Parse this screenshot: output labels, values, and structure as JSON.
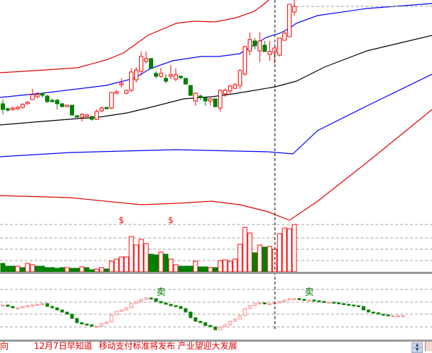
{
  "colors": {
    "up": "#ff0000",
    "down": "#008000",
    "indicator_up": "#ff8080",
    "upper_band": "#e00000",
    "mid_band": "#0000ff",
    "ma": "#000000",
    "lower_band_blue": "#0000ff",
    "lower_band_red": "#e00000",
    "grid": "#a0a0a0"
  },
  "chart_data": [
    {
      "type": "candlestick",
      "title": "",
      "grid": false,
      "candles": [
        [
          5.3,
          4.5,
          5.9,
          3.8
        ],
        [
          4.6,
          4.4,
          4.8,
          4.2
        ],
        [
          4.5,
          4.7,
          4.9,
          4.3
        ],
        [
          4.6,
          4.8,
          5.0,
          4.4
        ],
        [
          4.8,
          5.2,
          5.4,
          4.6
        ],
        [
          5.3,
          5.5,
          5.7,
          5.3
        ],
        [
          5.9,
          6.6,
          7.4,
          5.9
        ],
        [
          6.3,
          6.6,
          7.0,
          6.1
        ],
        [
          6.8,
          6.5,
          6.9,
          6.2
        ],
        [
          6.4,
          5.6,
          6.6,
          5.4
        ],
        [
          5.8,
          5.6,
          6.0,
          5.5
        ],
        [
          5.8,
          5.3,
          6.0,
          4.5
        ],
        [
          5.3,
          4.9,
          5.4,
          4.8
        ],
        [
          4.9,
          5.1,
          5.1,
          4.9
        ],
        [
          5.1,
          3.7,
          5.1,
          3.7
        ],
        [
          3.6,
          3.4,
          3.7,
          3.4
        ],
        [
          3.4,
          3.8,
          4.0,
          2.8
        ],
        [
          3.5,
          3.7,
          3.9,
          3.4
        ],
        [
          3.5,
          3.1,
          3.6,
          2.9
        ],
        [
          3.1,
          4.2,
          4.5,
          3.0
        ],
        [
          4.3,
          4.7,
          4.9,
          4.1
        ],
        [
          4.8,
          4.6,
          4.8,
          4.5
        ],
        [
          4.7,
          6.9,
          7.0,
          4.5
        ],
        [
          6.8,
          7.0,
          7.3,
          6.6
        ],
        [
          8.0,
          8.2,
          8.9,
          7.6
        ],
        [
          6.8,
          7.2,
          7.3,
          6.6
        ],
        [
          7.2,
          9.8,
          10.3,
          7.0
        ],
        [
          8.7,
          10.1,
          10.5,
          8.3
        ],
        [
          9.9,
          12.0,
          12.7,
          9.3
        ],
        [
          11.3,
          11.7,
          12.7,
          11.0
        ],
        [
          11.7,
          10.3,
          11.8,
          10.2
        ],
        [
          9.6,
          9.2,
          9.9,
          8.9
        ],
        [
          9.2,
          9.6,
          10.4,
          9.0
        ],
        [
          8.9,
          8.5,
          9.5,
          8.2
        ],
        [
          9.2,
          9.4,
          10.8,
          8.8
        ],
        [
          8.8,
          9.4,
          10.3,
          8.5
        ],
        [
          9.2,
          9.0,
          9.3,
          8.8
        ],
        [
          8.9,
          8.1,
          8.9,
          8.0
        ],
        [
          7.9,
          6.5,
          7.9,
          6.4
        ],
        [
          5.7,
          6.8,
          6.9,
          5.0
        ],
        [
          6.4,
          6.2,
          6.6,
          5.8
        ],
        [
          6.1,
          5.7,
          6.2,
          5.0
        ],
        [
          5.7,
          6.0,
          6.1,
          5.1
        ],
        [
          6.0,
          4.9,
          6.0,
          4.8
        ],
        [
          4.7,
          7.2,
          7.4,
          4.2
        ],
        [
          6.7,
          7.2,
          7.5,
          6.3
        ],
        [
          7.1,
          7.8,
          8.0,
          6.6
        ],
        [
          7.5,
          8.0,
          8.3,
          7.4
        ],
        [
          7.9,
          10.0,
          10.2,
          7.4
        ],
        [
          9.5,
          13.4,
          13.5,
          9.3
        ],
        [
          12.8,
          14.4,
          15.4,
          12.2
        ],
        [
          14.2,
          13.5,
          14.6,
          13.0
        ],
        [
          12.8,
          14.2,
          15.4,
          11.2
        ],
        [
          13.6,
          12.7,
          14.2,
          12.7
        ],
        [
          12.3,
          12.7,
          14.2,
          11.4
        ],
        [
          12.5,
          13.2,
          13.3,
          11.0
        ],
        [
          12.2,
          14.6,
          14.6,
          12.0
        ],
        [
          14.3,
          15.3,
          15.7,
          14.4
        ],
        [
          14.8,
          19.4,
          19.4,
          14.8
        ],
        [
          18.3,
          19.1,
          20.0,
          17.8
        ]
      ],
      "lines": [
        {
          "role": "upper-band-red",
          "points": [
            [
              -0.6,
              9.7
            ],
            [
              6.6,
              10
            ],
            [
              15.1,
              10.4
            ],
            [
              20.9,
              11.5
            ],
            [
              24.4,
              12.5
            ],
            [
              27,
              13.8
            ],
            [
              29.4,
              15
            ],
            [
              35.1,
              16.7
            ],
            [
              38.7,
              17
            ],
            [
              43,
              16.9
            ],
            [
              47.3,
              17.5
            ],
            [
              50.9,
              18.4
            ],
            [
              53,
              19.5
            ],
            [
              54.1,
              20.2
            ]
          ]
        },
        {
          "role": "mid-band-blue",
          "points": [
            [
              -0.6,
              6.2
            ],
            [
              8,
              6.8
            ],
            [
              20.9,
              7.9
            ],
            [
              26.6,
              8.9
            ],
            [
              29.9,
              10.3
            ],
            [
              34.4,
              11.4
            ],
            [
              40.1,
              12
            ],
            [
              43.7,
              12
            ],
            [
              48,
              12.4
            ],
            [
              53.3,
              14.7
            ],
            [
              56.1,
              15.3
            ],
            [
              58,
              16
            ],
            [
              59.4,
              16.7
            ],
            [
              63.7,
              17.8
            ],
            [
              73.7,
              18.8
            ],
            [
              86.9,
              19.5
            ]
          ]
        },
        {
          "role": "moving-average-black",
          "points": [
            [
              -0.6,
              2.3
            ],
            [
              8,
              2.8
            ],
            [
              15.1,
              3.2
            ],
            [
              19.4,
              3.4
            ],
            [
              25.1,
              4
            ],
            [
              29.9,
              4.8
            ],
            [
              36.6,
              6
            ],
            [
              42.3,
              6.3
            ],
            [
              46.6,
              6.7
            ],
            [
              50.9,
              7.2
            ],
            [
              55.1,
              7.7
            ],
            [
              59.4,
              8.5
            ],
            [
              65.1,
              10.5
            ],
            [
              73.7,
              12.8
            ],
            [
              86.9,
              15
            ]
          ]
        },
        {
          "role": "lower-band-blue",
          "points": [
            [
              -0.6,
              -2.2
            ],
            [
              13.7,
              -1.6
            ],
            [
              35.1,
              -1.2
            ],
            [
              53.7,
              -1.5
            ],
            [
              58.7,
              -1.8
            ],
            [
              63.7,
              1.5
            ],
            [
              73.7,
              5
            ],
            [
              86.9,
              9.5
            ]
          ]
        },
        {
          "role": "lower-band-red",
          "points": [
            [
              -0.6,
              -7.7
            ],
            [
              13.7,
              -8
            ],
            [
              28,
              -9
            ],
            [
              35.1,
              -8.8
            ],
            [
              42.3,
              -8.5
            ],
            [
              48,
              -9
            ],
            [
              53.7,
              -10
            ],
            [
              58,
              -11.2
            ],
            [
              63.7,
              -8.5
            ],
            [
              73.7,
              -3
            ],
            [
              86.9,
              4.5
            ]
          ]
        }
      ],
      "cursor_index": 55
    },
    {
      "type": "bar",
      "title": "",
      "values": [
        12,
        8,
        8,
        8,
        6,
        12,
        10,
        8,
        8,
        6,
        6,
        5,
        6,
        6,
        5,
        5,
        7,
        6,
        3,
        4,
        6,
        4,
        15,
        18,
        21,
        21,
        50,
        38,
        46,
        40,
        25,
        24,
        28,
        25,
        18,
        10,
        8,
        8,
        8,
        15,
        7,
        7,
        6,
        6,
        16,
        17,
        15,
        18,
        39,
        63,
        55,
        27,
        38,
        35,
        36,
        32,
        54,
        62,
        61,
        67
      ],
      "direction": [
        "down",
        "down",
        "down",
        "up",
        "down",
        "up",
        "up",
        "down",
        "down",
        "down",
        "down",
        "down",
        "down",
        "up",
        "down",
        "down",
        "up",
        "down",
        "down",
        "up",
        "up",
        "down",
        "up",
        "up",
        "up",
        "up",
        "up",
        "up",
        "up",
        "up",
        "down",
        "down",
        "up",
        "down",
        "up",
        "up",
        "down",
        "down",
        "down",
        "up",
        "down",
        "down",
        "up",
        "down",
        "up",
        "up",
        "up",
        "up",
        "up",
        "up",
        "up",
        "down",
        "up",
        "down",
        "up",
        "up",
        "up",
        "up",
        "up",
        "up"
      ],
      "markers": [
        {
          "index": 24,
          "label": "$"
        },
        {
          "index": 34,
          "label": "$"
        }
      ]
    },
    {
      "type": "line",
      "title": "",
      "values": [
        48,
        46,
        44,
        44,
        46,
        47,
        48,
        49,
        50,
        46,
        44,
        41,
        38,
        35,
        29,
        23,
        21,
        20,
        18,
        18,
        22,
        24,
        34,
        39,
        41,
        44,
        50,
        53,
        56,
        58,
        57,
        53,
        51,
        49,
        47,
        46,
        43,
        38,
        30,
        25,
        23,
        19,
        17,
        13,
        17,
        20,
        25,
        28,
        33,
        43,
        47,
        50,
        51,
        50,
        50,
        51,
        53,
        55,
        57,
        57,
        56,
        55,
        55,
        54,
        53,
        52,
        52,
        51,
        50,
        49,
        48,
        47,
        46,
        41,
        38,
        37,
        35,
        34,
        33,
        33,
        33,
        33
      ],
      "markers": [
        {
          "index": 32,
          "label": "卖"
        },
        {
          "index": 62,
          "label": "卖"
        }
      ]
    }
  ],
  "ticker": {
    "item1": "向",
    "item2": "12月7日早知道",
    "item3": "移动支付标准将发布  产业望迎大发展"
  },
  "scroll": {
    "up": "▲",
    "down": "▼"
  }
}
